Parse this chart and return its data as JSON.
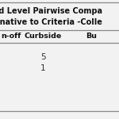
{
  "title_line1": "cond Level Pairwise Compa",
  "title_line2": "lternative to Criteria -Colle",
  "col_headers": [
    "n-off",
    "Curbside",
    "Bu"
  ],
  "row1_vals": [
    "",
    "5",
    ""
  ],
  "row2_vals": [
    "",
    "1",
    ""
  ],
  "bg_color": "#f2f2f2",
  "line_color": "#888888",
  "title_fontsize": 7.0,
  "header_fontsize": 6.8,
  "cell_fontsize": 7.5,
  "title_color": "#111111",
  "header_color": "#111111",
  "cell_color": "#333333"
}
